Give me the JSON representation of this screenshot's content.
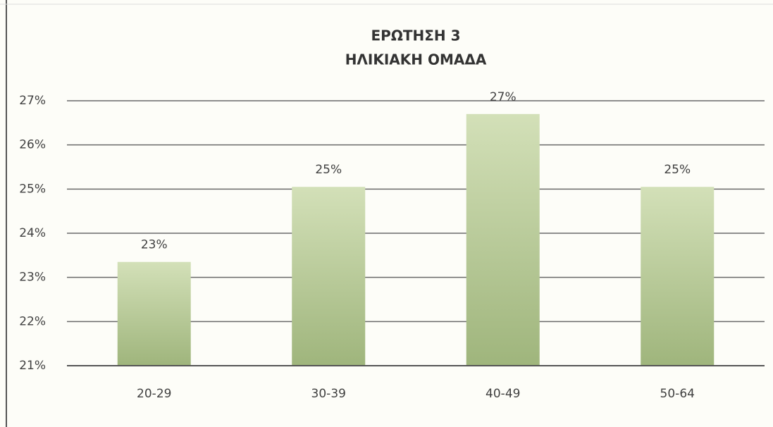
{
  "chart_data": {
    "type": "bar",
    "title": "ΕΡΩΤΗΣΗ 3",
    "subtitle": "ΗΛΙΚΙΑΚΗ ΟΜΑΔΑ",
    "categories": [
      "20-29",
      "30-39",
      "40-49",
      "50-64"
    ],
    "values": [
      23.35,
      25.05,
      26.7,
      25.05
    ],
    "value_labels": [
      "23%",
      "25%",
      "27%",
      "25%"
    ],
    "color": "#a9bf86",
    "ylim": [
      21,
      27
    ],
    "yticks": [
      {
        "value": 21,
        "label": "21%"
      },
      {
        "value": 22,
        "label": "22%"
      },
      {
        "value": 23,
        "label": "23%"
      },
      {
        "value": 24,
        "label": "24%"
      },
      {
        "value": 25,
        "label": "25%"
      },
      {
        "value": 26,
        "label": "26%"
      },
      {
        "value": 27,
        "label": "27%"
      }
    ],
    "grid": true
  }
}
